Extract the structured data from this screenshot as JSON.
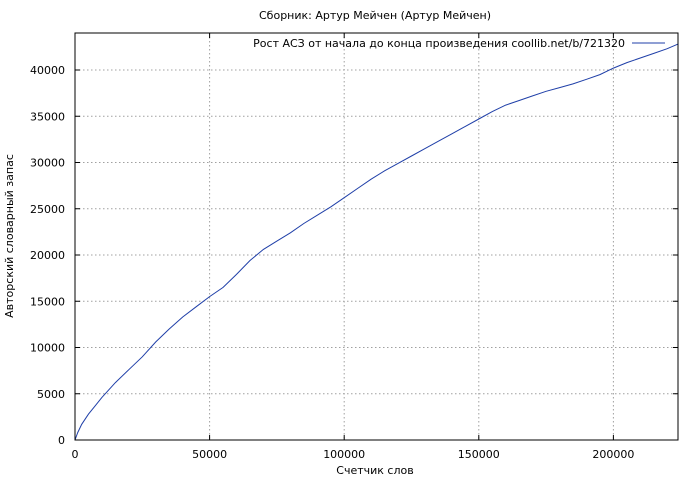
{
  "chart_data": {
    "type": "line",
    "title": "Сборник: Артур Мейчен (Артур Мейчен)",
    "xlabel": "Счетчик слов",
    "ylabel": "Авторский словарный запас",
    "xlim": [
      0,
      224000
    ],
    "ylim": [
      0,
      44000
    ],
    "xticks": [
      0,
      50000,
      100000,
      150000,
      200000
    ],
    "yticks": [
      0,
      5000,
      10000,
      15000,
      20000,
      25000,
      30000,
      35000,
      40000
    ],
    "grid": true,
    "legend_position": "top-right",
    "series": [
      {
        "name": "Рост АСЗ от начала до конца произведения coollib.net/b/721320",
        "color": "#1f3fa8",
        "x": [
          0,
          1000,
          2500,
          5000,
          7500,
          10000,
          15000,
          20000,
          25000,
          30000,
          35000,
          40000,
          45000,
          50000,
          55000,
          60000,
          65000,
          70000,
          75000,
          80000,
          85000,
          90000,
          95000,
          100000,
          105000,
          110000,
          115000,
          120000,
          125000,
          130000,
          135000,
          140000,
          145000,
          150000,
          155000,
          160000,
          165000,
          170000,
          175000,
          180000,
          185000,
          190000,
          195000,
          200000,
          205000,
          210000,
          215000,
          220000,
          224000
        ],
        "y": [
          0,
          800,
          1700,
          2800,
          3700,
          4600,
          6200,
          7600,
          9000,
          10600,
          12000,
          13300,
          14400,
          15500,
          16500,
          17900,
          19400,
          20600,
          21500,
          22400,
          23400,
          24300,
          25200,
          26200,
          27200,
          28200,
          29100,
          29900,
          30700,
          31500,
          32300,
          33100,
          33900,
          34700,
          35500,
          36200,
          36700,
          37200,
          37700,
          38100,
          38500,
          39000,
          39500,
          40200,
          40800,
          41300,
          41800,
          42300,
          42800
        ]
      }
    ]
  }
}
